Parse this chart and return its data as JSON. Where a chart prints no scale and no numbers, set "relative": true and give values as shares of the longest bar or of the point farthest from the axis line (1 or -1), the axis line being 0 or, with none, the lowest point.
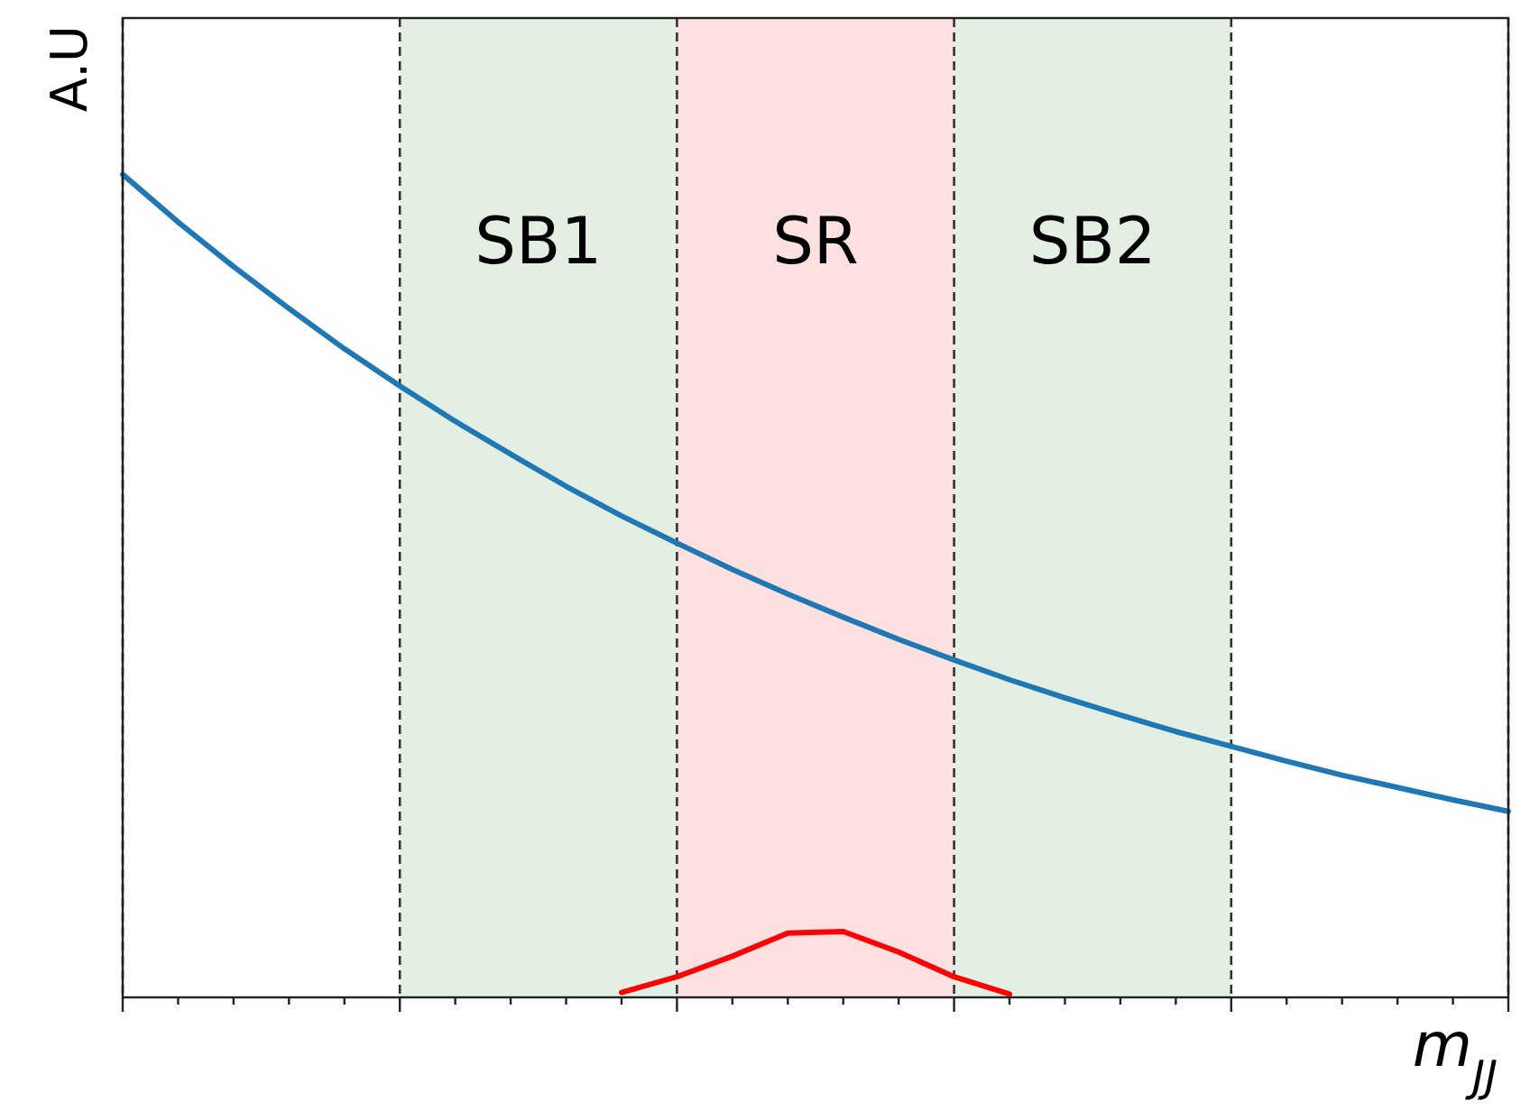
{
  "chart_data": {
    "type": "line",
    "relative": true,
    "xlabel": "m$_{JJ}$",
    "ylabel": "A.U",
    "categories": [
      null,
      null,
      null,
      null,
      null,
      null,
      null,
      null,
      null,
      null,
      null,
      null,
      null,
      null,
      null,
      null,
      null,
      null,
      null,
      null,
      null,
      null,
      null,
      null,
      null,
      null
    ],
    "series": [
      {
        "color": "#1f77b4",
        "values": [
          1,
          0.942,
          0.888,
          0.837,
          0.788,
          0.743,
          0.7,
          0.66,
          0.621,
          0.585,
          0.552,
          0.52,
          0.49,
          0.462,
          0.435,
          0.41,
          0.386,
          0.364,
          0.343,
          0.323,
          0.305,
          0.287,
          0.27,
          0.255,
          0.24,
          0.226
        ]
      },
      {
        "color": "#ff0000",
        "values": [
          null,
          null,
          null,
          null,
          null,
          null,
          null,
          null,
          null,
          0.006,
          0.025,
          0.05,
          0.078,
          0.08,
          0.055,
          0.025,
          0.004,
          null,
          null,
          null,
          null,
          null,
          null,
          null,
          null,
          null
        ]
      }
    ],
    "annotations": [
      "SB1",
      "SR",
      "SB2"
    ],
    "grid": "x",
    "marker": "none",
    "line_style": "solid"
  }
}
